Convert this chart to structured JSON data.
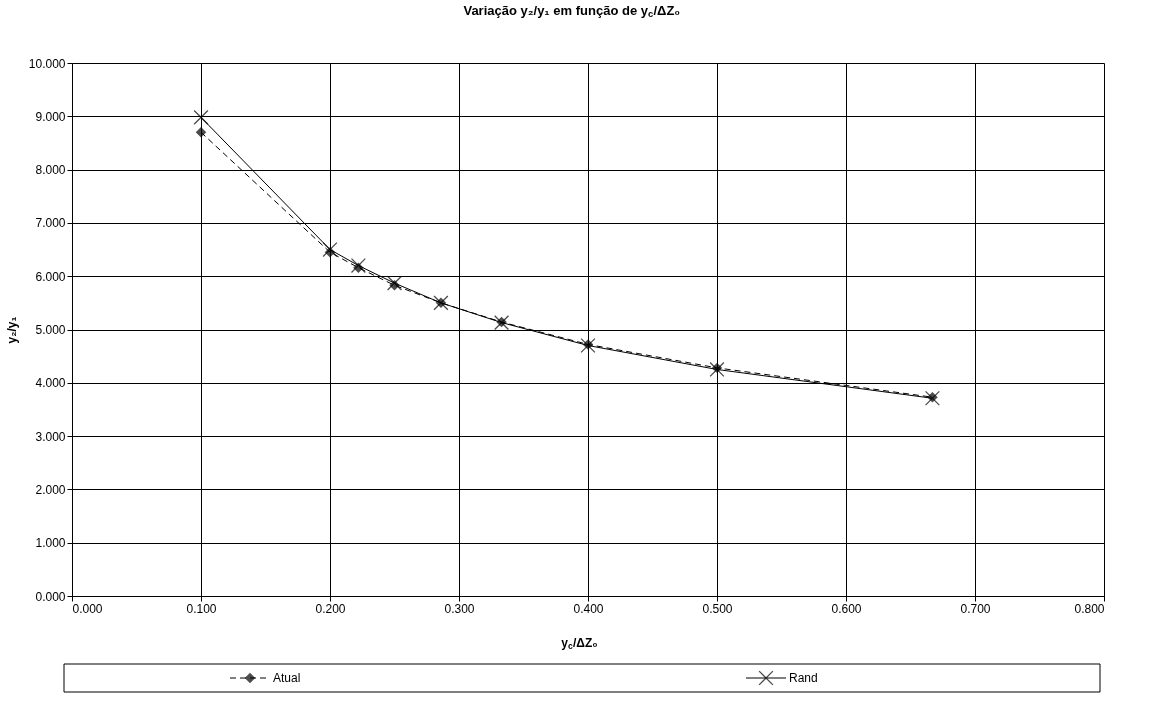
{
  "chart_data": {
    "type": "line",
    "title": "Variação y₂/y₁ em função de y$_{c}$/ΔZ₀",
    "xlabel": "y$_{c}$/ΔZ₀",
    "ylabel": "y₂/y₁",
    "x": [
      0.1,
      0.2,
      0.222,
      0.25,
      0.286,
      0.333,
      0.4,
      0.5,
      0.667
    ],
    "series": [
      {
        "name": "Atual",
        "color": "#000000",
        "marker": "diamond",
        "line_style": "dashed",
        "values": [
          8.7,
          6.45,
          6.16,
          5.83,
          5.5,
          5.14,
          4.72,
          4.28,
          3.73
        ]
      },
      {
        "name": "Rand",
        "color": "#000000",
        "marker": "cross",
        "line_style": "solid",
        "values": [
          8.98,
          6.5,
          6.2,
          5.87,
          5.5,
          5.13,
          4.7,
          4.25,
          3.71
        ]
      }
    ],
    "xlim": [
      0,
      0.8
    ],
    "xticks": [
      {
        "value": 0,
        "label": "0.000"
      },
      {
        "value": 0.1,
        "label": "0.100"
      },
      {
        "value": 0.2,
        "label": "0.200"
      },
      {
        "value": 0.3,
        "label": "0.300"
      },
      {
        "value": 0.4,
        "label": "0.400"
      },
      {
        "value": 0.5,
        "label": "0.500"
      },
      {
        "value": 0.6,
        "label": "0.600"
      },
      {
        "value": 0.7,
        "label": "0.700"
      },
      {
        "value": 0.8,
        "label": "0.800"
      }
    ],
    "ylim": [
      0,
      10
    ],
    "yticks": [
      {
        "value": 0,
        "label": "0.000"
      },
      {
        "value": 1,
        "label": "1.000"
      },
      {
        "value": 2,
        "label": "2.000"
      },
      {
        "value": 3,
        "label": "3.000"
      },
      {
        "value": 4,
        "label": "4.000"
      },
      {
        "value": 5,
        "label": "5.000"
      },
      {
        "value": 6,
        "label": "6.000"
      },
      {
        "value": 7,
        "label": "7.000"
      },
      {
        "value": 8,
        "label": "8.000"
      },
      {
        "value": 9,
        "label": "9.000"
      },
      {
        "value": 10,
        "label": "10.000"
      }
    ],
    "grid": true,
    "legend": "bottom"
  }
}
